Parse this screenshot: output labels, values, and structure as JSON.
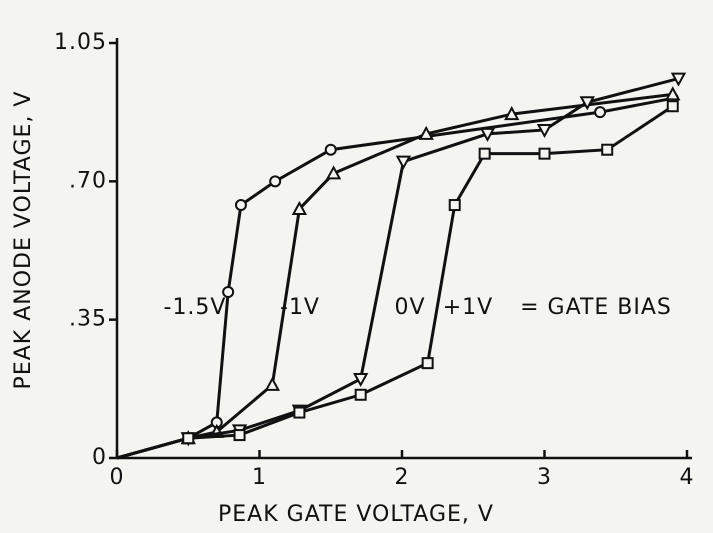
{
  "chart_data": {
    "type": "line",
    "xlabel": "PEAK GATE VOLTAGE, V",
    "ylabel": "PEAK ANODE VOLTAGE, V",
    "xlim": [
      0,
      4
    ],
    "xticks": [
      0,
      1,
      2,
      3,
      4
    ],
    "ylim": [
      0,
      1.05
    ],
    "yticks": [
      0,
      {
        "value": 0.35,
        "label": ".35"
      },
      {
        "value": 0.7,
        "label": ".70"
      },
      1.05
    ],
    "annotations": [
      "= GATE BIAS"
    ],
    "series": [
      {
        "name": "-1.5V",
        "color": "#111",
        "marker": "circle",
        "x": [
          0,
          0.5,
          0.7,
          0.78,
          0.87,
          1.11,
          1.5,
          3.39,
          3.9
        ],
        "values": [
          0,
          0.05,
          0.09,
          0.42,
          0.64,
          0.7,
          0.78,
          0.875,
          0.91
        ]
      },
      {
        "name": "-1V",
        "color": "#111",
        "marker": "triangle",
        "x": [
          0,
          0.5,
          0.7,
          1.09,
          1.28,
          1.52,
          2.17,
          2.77,
          3.9
        ],
        "values": [
          0,
          0.05,
          0.066,
          0.185,
          0.63,
          0.72,
          0.82,
          0.87,
          0.92
        ]
      },
      {
        "name": "0V",
        "color": "#111",
        "marker": "triangle-down",
        "x": [
          0,
          0.5,
          0.86,
          1.28,
          1.71,
          2.01,
          2.6,
          3.0,
          3.3,
          3.94
        ],
        "values": [
          0,
          0.05,
          0.07,
          0.12,
          0.2,
          0.75,
          0.82,
          0.83,
          0.9,
          0.96
        ]
      },
      {
        "name": "+1V",
        "color": "#111",
        "marker": "square",
        "x": [
          0,
          0.5,
          0.86,
          1.28,
          1.71,
          2.18,
          2.37,
          2.58,
          3.0,
          3.44,
          3.9
        ],
        "values": [
          0,
          0.05,
          0.058,
          0.115,
          0.16,
          0.24,
          0.64,
          0.77,
          0.77,
          0.78,
          0.89
        ]
      }
    ]
  }
}
